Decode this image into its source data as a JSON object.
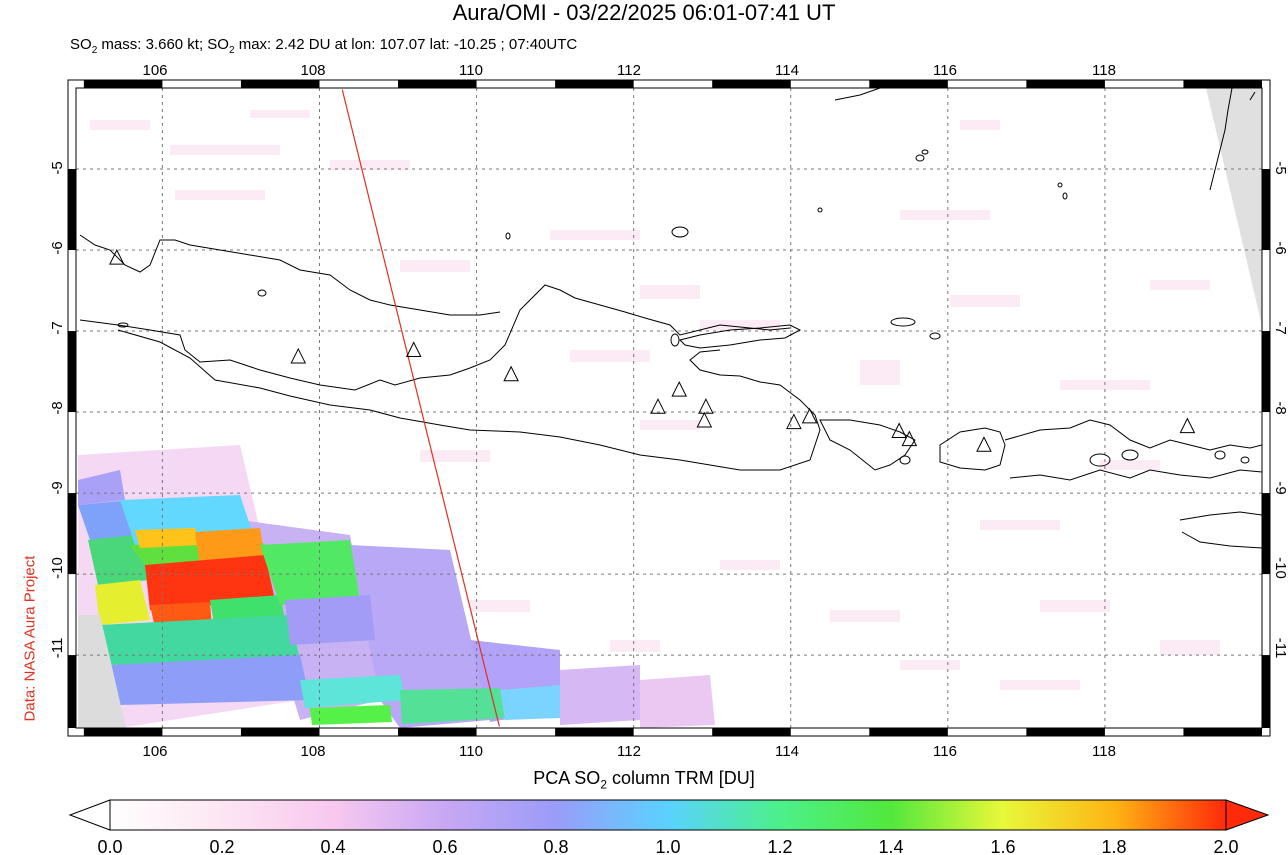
{
  "header": {
    "title": "Aura/OMI - 03/22/2025 06:01-07:41 UT",
    "subtitle_prefix": "SO",
    "subtitle_sub1": "2",
    "subtitle_mid": " mass: 3.660 kt; SO",
    "subtitle_sub2": "2",
    "subtitle_rest": " max: 2.42 DU at lon: 107.07 lat: -10.25 ; 07:40UTC"
  },
  "credit": "Data: NASA Aura Project",
  "map": {
    "lon_range": [
      104.9,
      120.0
    ],
    "lat_range": [
      -11.9,
      -4.0
    ],
    "lon_ticks": [
      "106",
      "108",
      "110",
      "112",
      "114",
      "116",
      "118"
    ],
    "lat_ticks": [
      "-5",
      "-6",
      "-7",
      "-8",
      "-9",
      "-10",
      "-11"
    ],
    "volcanoes": [
      {
        "lon": 105.42,
        "lat": -6.1
      },
      {
        "lon": 107.73,
        "lat": -7.32
      },
      {
        "lon": 109.2,
        "lat": -7.24
      },
      {
        "lon": 110.44,
        "lat": -7.54
      },
      {
        "lon": 112.31,
        "lat": -7.94
      },
      {
        "lon": 112.58,
        "lat": -7.73
      },
      {
        "lon": 112.92,
        "lat": -7.94
      },
      {
        "lon": 112.9,
        "lat": -8.11
      },
      {
        "lon": 114.04,
        "lat": -8.13
      },
      {
        "lon": 114.24,
        "lat": -8.06
      },
      {
        "lon": 115.38,
        "lat": -8.24
      },
      {
        "lon": 115.51,
        "lat": -8.34
      },
      {
        "lon": 116.46,
        "lat": -8.41
      },
      {
        "lon": 119.05,
        "lat": -8.18
      }
    ],
    "track_line": {
      "start": {
        "lon": 108.29,
        "lat": -4.02
      },
      "end": {
        "lon": 110.29,
        "lat": -11.88
      }
    },
    "track_color": "#e03020"
  },
  "colorbar": {
    "title_prefix": "PCA SO",
    "title_sub": "2",
    "title_rest": " column TRM [DU]",
    "labels": [
      "0.0",
      "0.2",
      "0.4",
      "0.6",
      "0.8",
      "1.0",
      "1.2",
      "1.4",
      "1.6",
      "1.8",
      "2.0"
    ],
    "range": [
      0.0,
      2.0
    ],
    "colors": [
      "#ffffff",
      "#fce6f2",
      "#f8c8f0",
      "#c8a8f4",
      "#9a9cf8",
      "#5ad2ff",
      "#4cf08c",
      "#52e83c",
      "#e8f83a",
      "#ffb414",
      "#ff2a0a"
    ]
  }
}
